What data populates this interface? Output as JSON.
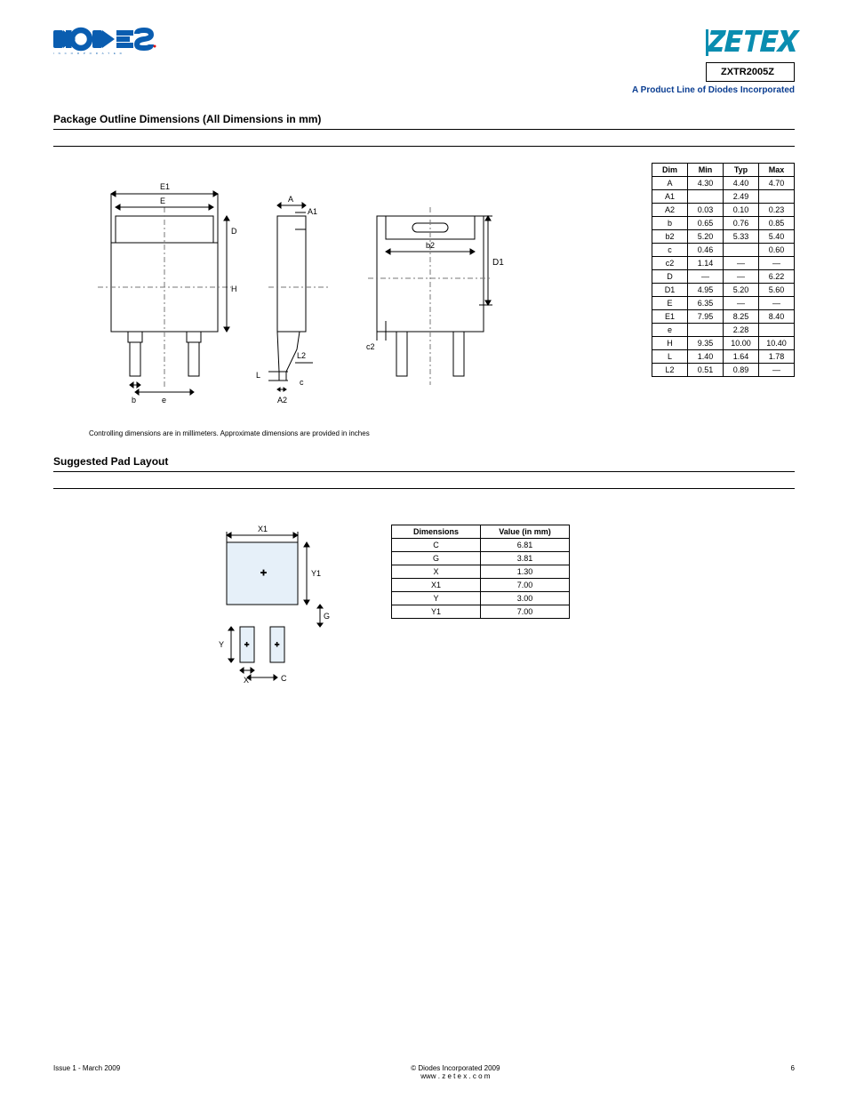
{
  "header": {
    "part_number": "ZXTR2005Z",
    "product_line": "A Product Line of Diodes Incorporated"
  },
  "section1": {
    "title": "Package Outline Dimensions (All Dimensions in mm)"
  },
  "dim_table": {
    "headers": [
      "Dim",
      "Min",
      "Typ",
      "Max"
    ],
    "rows": [
      [
        "A",
        "4.30",
        "4.40",
        "4.70"
      ],
      [
        "A1",
        "",
        "2.49",
        ""
      ],
      [
        "A2",
        "0.03",
        "0.10",
        "0.23"
      ],
      [
        "b",
        "0.65",
        "0.76",
        "0.85"
      ],
      [
        "b2",
        "5.20",
        "5.33",
        "5.40"
      ],
      [
        "c",
        "0.46",
        "",
        "0.60"
      ],
      [
        "c2",
        "1.14",
        "—",
        "—"
      ],
      [
        "D",
        "—",
        "—",
        "6.22"
      ],
      [
        "D1",
        "4.95",
        "5.20",
        "5.60"
      ],
      [
        "E",
        "6.35",
        "—",
        "—"
      ],
      [
        "E1",
        "7.95",
        "8.25",
        "8.40"
      ],
      [
        "e",
        "",
        "2.28",
        ""
      ],
      [
        "H",
        "9.35",
        "10.00",
        "10.40"
      ],
      [
        "L",
        "1.40",
        "1.64",
        "1.78"
      ],
      [
        "L2",
        "0.51",
        "0.89",
        "—"
      ]
    ]
  },
  "drawing_note": "Controlling dimensions are in millimeters. Approximate dimensions are provided in inches",
  "section2": {
    "title": "Suggested Pad Layout"
  },
  "footprint_table": {
    "headers": [
      "Dimensions",
      "Value (in mm)"
    ],
    "rows": [
      [
        "C",
        "6.81"
      ],
      [
        "G",
        "3.81"
      ],
      [
        "X",
        "1.30"
      ],
      [
        "X1",
        "7.00"
      ],
      [
        "Y",
        "3.00"
      ],
      [
        "Y1",
        "7.00"
      ]
    ]
  },
  "diagram": {
    "d1_label": "D1",
    "top_labels": {
      "E1": "E1",
      "E": "E"
    },
    "side_labels": {
      "A": "A",
      "A1": "A1",
      "A2": "A2"
    },
    "bottom_labels": {
      "b": "b",
      "e": "e",
      "b2": "b2",
      "c": "c",
      "c2": "c2",
      "H": "H",
      "L": "L",
      "L2": "L2",
      "D": "D"
    },
    "fp_labels": {
      "X1": "X1",
      "Y1": "Y1",
      "X": "X",
      "Y": "Y",
      "G": "G",
      "C": "C"
    },
    "colors": {
      "stroke": "#000000",
      "centerline": "#555555",
      "shade": "#e6f0f9"
    }
  },
  "footer": {
    "issue": "Issue 1 - March 2009",
    "copyright": "© Diodes Incorporated 2009",
    "website": "www . z e t e x . c o m",
    "page": "6"
  }
}
